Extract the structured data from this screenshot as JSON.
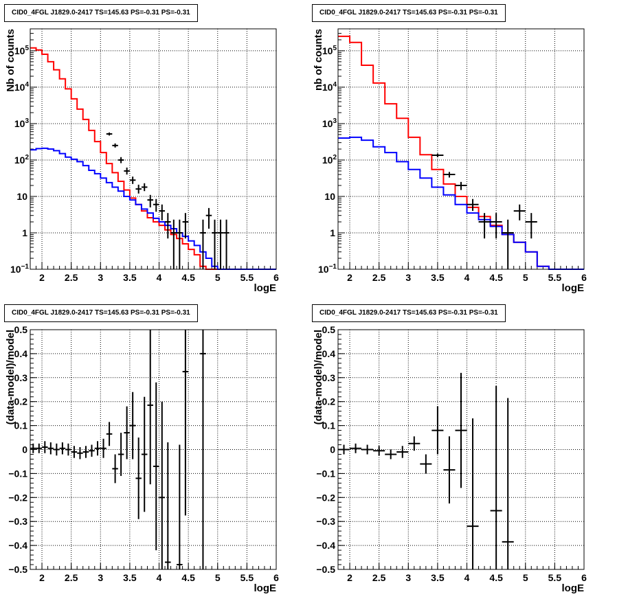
{
  "chart_data": [
    {
      "title": "CID0_4FGL J1829.0-2417 TS=145.63 PS=-0.31 PS=-0.31",
      "type": "histogram",
      "xlabel": "logE",
      "ylabel": "Nb of counts",
      "scale_y": "log",
      "xlim": [
        1.8,
        6
      ],
      "ylim": [
        0.1,
        400000
      ],
      "grid": true,
      "x_ticks": [
        "2",
        "2.5",
        "3",
        "3.5",
        "4",
        "4.5",
        "5",
        "5.5",
        "6"
      ],
      "y_ticks": [
        "10^-1",
        "1",
        "10",
        "10^2",
        "10^3",
        "10^4",
        "10^5"
      ],
      "bin_edges_start": 1.8,
      "bin_width": 0.1,
      "series": [
        {
          "color": "#ff0000",
          "values": [
            120000,
            105000,
            80000,
            50000,
            30000,
            17000,
            9000,
            4800,
            2500,
            1300,
            650,
            320,
            160,
            80,
            45,
            26,
            15,
            9,
            6,
            4,
            2.6,
            2,
            1.6,
            1.2,
            0.9,
            0.7,
            0.5,
            0.35,
            0.25,
            0.12,
            0.1,
            0.1,
            0.1,
            0.1,
            0.1,
            0.1,
            0.1,
            0.1,
            0.1,
            0.1,
            0.1,
            0.1
          ]
        },
        {
          "color": "#0000ff",
          "values": [
            190,
            205,
            210,
            200,
            180,
            150,
            120,
            105,
            90,
            70,
            52,
            42,
            32,
            24,
            18,
            14,
            10,
            8,
            6,
            4.5,
            3.5,
            2.5,
            2.0,
            1.6,
            1.3,
            1.0,
            0.8,
            0.6,
            0.45,
            0.3,
            0.2,
            0.12,
            0.1,
            0.1,
            0.1,
            0.1,
            0.1,
            0.1,
            0.1,
            0.1,
            0.1,
            0.1
          ]
        }
      ],
      "data_points": [
        {
          "x": 3.15,
          "y": 520,
          "lo": 470,
          "hi": 570
        },
        {
          "x": 3.25,
          "y": 250,
          "lo": 220,
          "hi": 285
        },
        {
          "x": 3.35,
          "y": 100,
          "lo": 82,
          "hi": 120
        },
        {
          "x": 3.45,
          "y": 50,
          "lo": 40,
          "hi": 62
        },
        {
          "x": 3.55,
          "y": 28,
          "lo": 22,
          "hi": 35
        },
        {
          "x": 3.65,
          "y": 16,
          "lo": 12,
          "hi": 21
        },
        {
          "x": 3.75,
          "y": 18,
          "lo": 14,
          "hi": 23
        },
        {
          "x": 3.85,
          "y": 8,
          "lo": 5,
          "hi": 11
        },
        {
          "x": 3.95,
          "y": 6,
          "lo": 3.8,
          "hi": 8.5
        },
        {
          "x": 4.05,
          "y": 4,
          "lo": 2.2,
          "hi": 6
        },
        {
          "x": 4.15,
          "y": 2,
          "lo": 0.7,
          "hi": 3.5
        },
        {
          "x": 4.25,
          "y": 1,
          "lo": 0.1,
          "hi": 2.3
        },
        {
          "x": 4.35,
          "y": 1,
          "lo": 0.1,
          "hi": 2.3
        },
        {
          "x": 4.45,
          "y": 2,
          "lo": 0.7,
          "hi": 3.5
        },
        {
          "x": 4.75,
          "y": 1,
          "lo": 0.1,
          "hi": 2.3
        },
        {
          "x": 4.85,
          "y": 3,
          "lo": 1.3,
          "hi": 4.8
        },
        {
          "x": 4.95,
          "y": 1,
          "lo": 0.1,
          "hi": 2.3
        },
        {
          "x": 5.05,
          "y": 1,
          "lo": 0.1,
          "hi": 2.3
        },
        {
          "x": 5.15,
          "y": 1,
          "lo": 0.1,
          "hi": 2.3
        }
      ]
    },
    {
      "title": "CID0_4FGL J1829.0-2417 TS=145.63 PS=-0.31 PS=-0.31",
      "type": "histogram",
      "xlabel": "logE",
      "ylabel": "nb of counts",
      "scale_y": "log",
      "xlim": [
        1.8,
        6
      ],
      "ylim": [
        0.1,
        400000
      ],
      "grid": true,
      "x_ticks": [
        "2",
        "2.5",
        "3",
        "3.5",
        "4",
        "4.5",
        "5",
        "5.5",
        "6"
      ],
      "y_ticks": [
        "10^-1",
        "1",
        "10",
        "10^2",
        "10^3",
        "10^4",
        "10^5"
      ],
      "bin_edges_start": 1.8,
      "bin_width": 0.2,
      "series": [
        {
          "color": "#ff0000",
          "values": [
            250000,
            170000,
            40000,
            13000,
            3500,
            1400,
            420,
            140,
            55,
            22,
            10,
            5,
            2.8,
            1.6,
            0.9,
            0.55,
            0.3,
            0.12,
            0.1,
            0.1,
            0.1
          ]
        },
        {
          "color": "#0000ff",
          "values": [
            400,
            420,
            350,
            230,
            160,
            90,
            55,
            32,
            18,
            11,
            6,
            3.5,
            2.3,
            1.5,
            0.9,
            0.55,
            0.3,
            0.12,
            0.1,
            0.1,
            0.1
          ]
        }
      ],
      "data_points": [
        {
          "x": 3.5,
          "y": 135,
          "lo": 120,
          "hi": 150
        },
        {
          "x": 3.7,
          "y": 40,
          "lo": 33,
          "hi": 47
        },
        {
          "x": 3.9,
          "y": 20,
          "lo": 15,
          "hi": 25
        },
        {
          "x": 4.1,
          "y": 6,
          "lo": 4,
          "hi": 8.5
        },
        {
          "x": 4.3,
          "y": 2,
          "lo": 0.7,
          "hi": 3.5
        },
        {
          "x": 4.5,
          "y": 2,
          "lo": 0.7,
          "hi": 3.5
        },
        {
          "x": 4.7,
          "y": 1,
          "lo": 0.1,
          "hi": 2.3
        },
        {
          "x": 4.9,
          "y": 4,
          "lo": 2.2,
          "hi": 6
        },
        {
          "x": 5.1,
          "y": 2,
          "lo": 0.7,
          "hi": 3.5
        }
      ]
    },
    {
      "title": "CID0_4FGL J1829.0-2417 TS=145.63 PS=-0.31 PS=-0.31",
      "type": "scatter",
      "xlabel": "logE",
      "ylabel": "(data-model)/model",
      "xlim": [
        1.8,
        6
      ],
      "ylim": [
        -0.5,
        0.5
      ],
      "grid": true,
      "x_ticks": [
        "2",
        "2.5",
        "3",
        "3.5",
        "4",
        "4.5",
        "5",
        "5.5",
        "6"
      ],
      "y_ticks": [
        "-0.5",
        "-0.4",
        "-0.3",
        "-0.2",
        "-0.1",
        "0",
        "0.1",
        "0.2",
        "0.3",
        "0.4",
        "0.5"
      ],
      "data_points": [
        {
          "x": 1.85,
          "y": 0.005,
          "err": 0.02,
          "xerr": 0.05
        },
        {
          "x": 1.95,
          "y": 0.005,
          "err": 0.02,
          "xerr": 0.05
        },
        {
          "x": 2.05,
          "y": 0.01,
          "err": 0.025,
          "xerr": 0.05
        },
        {
          "x": 2.15,
          "y": 0.005,
          "err": 0.025,
          "xerr": 0.05
        },
        {
          "x": 2.25,
          "y": 0.0,
          "err": 0.025,
          "xerr": 0.05
        },
        {
          "x": 2.35,
          "y": 0.005,
          "err": 0.025,
          "xerr": 0.05
        },
        {
          "x": 2.45,
          "y": 0.0,
          "err": 0.025,
          "xerr": 0.05
        },
        {
          "x": 2.55,
          "y": -0.01,
          "err": 0.025,
          "xerr": 0.05
        },
        {
          "x": 2.65,
          "y": -0.015,
          "err": 0.025,
          "xerr": 0.05
        },
        {
          "x": 2.75,
          "y": -0.01,
          "err": 0.025,
          "xerr": 0.05
        },
        {
          "x": 2.85,
          "y": -0.005,
          "err": 0.025,
          "xerr": 0.05
        },
        {
          "x": 2.95,
          "y": 0.005,
          "err": 0.03,
          "xerr": 0.05
        },
        {
          "x": 3.05,
          "y": 0.005,
          "err": 0.04,
          "xerr": 0.05
        },
        {
          "x": 3.15,
          "y": 0.065,
          "err": 0.05,
          "xerr": 0.05
        },
        {
          "x": 3.25,
          "y": -0.08,
          "err": 0.06,
          "xerr": 0.05
        },
        {
          "x": 3.35,
          "y": -0.02,
          "err": 0.09,
          "xerr": 0.05
        },
        {
          "x": 3.45,
          "y": 0.07,
          "err": 0.11,
          "xerr": 0.05
        },
        {
          "x": 3.55,
          "y": 0.1,
          "err": 0.14,
          "xerr": 0.05
        },
        {
          "x": 3.65,
          "y": -0.12,
          "err": 0.17,
          "xerr": 0.05
        },
        {
          "x": 3.75,
          "y": -0.02,
          "err": 0.24,
          "xerr": 0.05
        },
        {
          "x": 3.85,
          "y": 0.185,
          "err": 0.33,
          "xerr": 0.05
        },
        {
          "x": 3.95,
          "y": -0.07,
          "err": 0.35,
          "xerr": 0.05
        },
        {
          "x": 4.05,
          "y": -0.2,
          "err": 0.4,
          "xerr": 0.05
        },
        {
          "x": 4.15,
          "y": -0.47,
          "err": 0.5,
          "xerr": 0.05
        },
        {
          "x": 4.35,
          "y": -0.48,
          "err": 0.5,
          "xerr": 0.05
        },
        {
          "x": 4.45,
          "y": 0.325,
          "err": 0.6,
          "xerr": 0.05
        },
        {
          "x": 4.75,
          "y": 0.4,
          "err": 1.0,
          "xerr": 0.05
        }
      ]
    },
    {
      "title": "CID0_4FGL J1829.0-2417 TS=145.63 PS=-0.31 PS=-0.31",
      "type": "scatter",
      "xlabel": "logE",
      "ylabel": "(data-model)/model",
      "xlim": [
        1.8,
        6
      ],
      "ylim": [
        -0.5,
        0.5
      ],
      "grid": true,
      "x_ticks": [
        "2",
        "2.5",
        "3",
        "3.5",
        "4",
        "4.5",
        "5",
        "5.5",
        "6"
      ],
      "y_ticks": [
        "-0.5",
        "-0.4",
        "-0.3",
        "-0.2",
        "-0.1",
        "0",
        "0.1",
        "0.2",
        "0.3",
        "0.4",
        "0.5"
      ],
      "data_points": [
        {
          "x": 1.9,
          "y": 0.0,
          "err": 0.02,
          "xerr": 0.1
        },
        {
          "x": 2.1,
          "y": 0.005,
          "err": 0.02,
          "xerr": 0.1
        },
        {
          "x": 2.3,
          "y": 0.0,
          "err": 0.02,
          "xerr": 0.1
        },
        {
          "x": 2.5,
          "y": -0.005,
          "err": 0.02,
          "xerr": 0.1
        },
        {
          "x": 2.7,
          "y": -0.02,
          "err": 0.02,
          "xerr": 0.1
        },
        {
          "x": 2.9,
          "y": -0.01,
          "err": 0.025,
          "xerr": 0.1
        },
        {
          "x": 3.1,
          "y": 0.025,
          "err": 0.03,
          "xerr": 0.1
        },
        {
          "x": 3.3,
          "y": -0.06,
          "err": 0.04,
          "xerr": 0.1
        },
        {
          "x": 3.5,
          "y": 0.08,
          "err": 0.1,
          "xerr": 0.1
        },
        {
          "x": 3.7,
          "y": -0.085,
          "err": 0.14,
          "xerr": 0.1
        },
        {
          "x": 3.9,
          "y": 0.08,
          "err": 0.24,
          "xerr": 0.1
        },
        {
          "x": 4.1,
          "y": -0.32,
          "err": 0.45,
          "xerr": 0.1
        },
        {
          "x": 4.5,
          "y": -0.255,
          "err": 0.52,
          "xerr": 0.1
        },
        {
          "x": 4.7,
          "y": -0.385,
          "err": 0.6,
          "xerr": 0.1
        }
      ]
    }
  ]
}
